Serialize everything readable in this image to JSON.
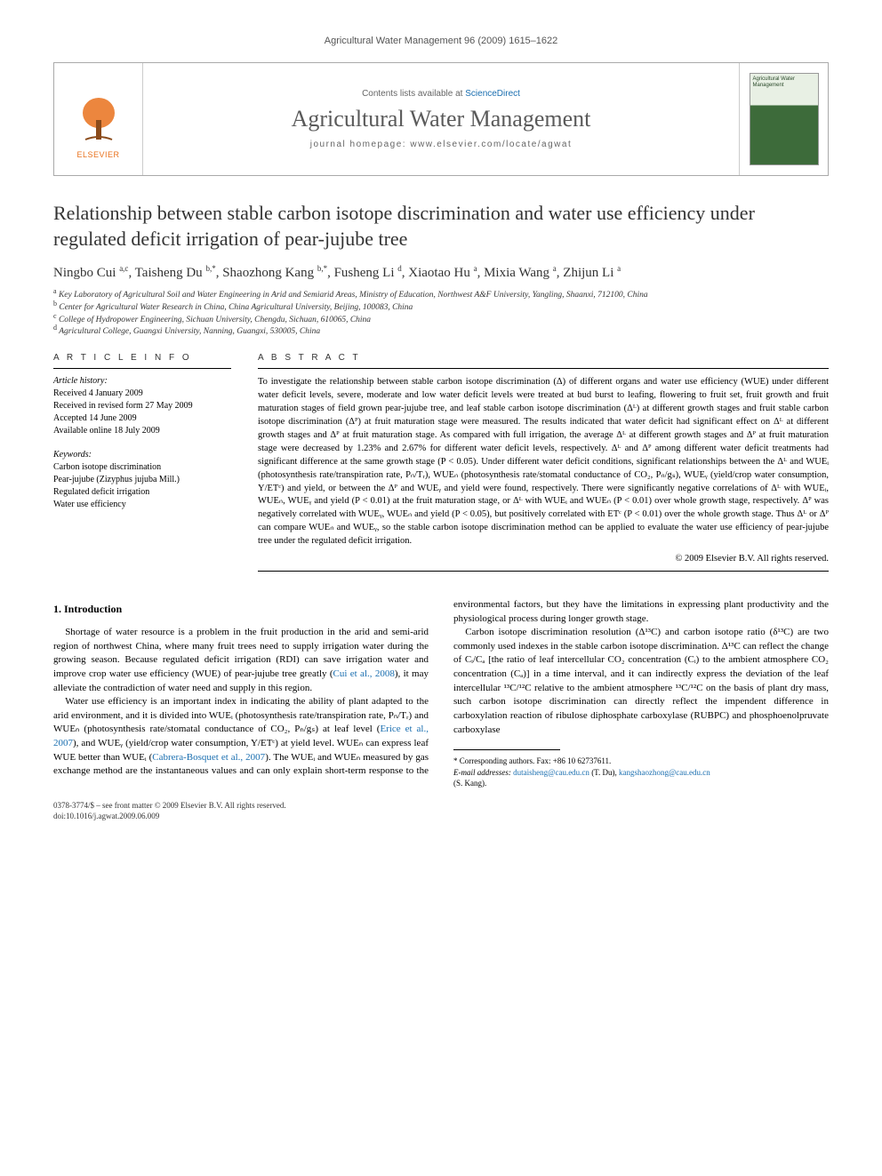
{
  "runningHead": "Agricultural Water Management 96 (2009) 1615–1622",
  "masthead": {
    "contentsPrefix": "Contents lists available at ",
    "contentsLink": "ScienceDirect",
    "journalName": "Agricultural Water Management",
    "homepageLine": "journal homepage: www.elsevier.com/locate/agwat",
    "publisher": "ELSEVIER",
    "coverLabel": "Agricultural Water Management"
  },
  "title": "Relationship between stable carbon isotope discrimination and water use efficiency under regulated deficit irrigation of pear-jujube tree",
  "authorsHtml": "Ningbo Cui <sup>a,c</sup>, Taisheng Du <sup>b,*</sup>, Shaozhong Kang <sup>b,*</sup>, Fusheng Li <sup>d</sup>, Xiaotao Hu <sup>a</sup>, Mixia Wang <sup>a</sup>, Zhijun Li <sup>a</sup>",
  "affiliations": [
    {
      "sup": "a",
      "text": "Key Laboratory of Agricultural Soil and Water Engineering in Arid and Semiarid Areas, Ministry of Education, Northwest A&F University, Yangling, Shaanxi, 712100, China"
    },
    {
      "sup": "b",
      "text": "Center for Agricultural Water Research in China, China Agricultural University, Beijing, 100083, China"
    },
    {
      "sup": "c",
      "text": "College of Hydropower Engineering, Sichuan University, Chengdu, Sichuan, 610065, China"
    },
    {
      "sup": "d",
      "text": "Agricultural College, Guangxi University, Nanning, Guangxi, 530005, China"
    }
  ],
  "articleInfoLabel": "A R T I C L E   I N F O",
  "abstractLabel": "A B S T R A C T",
  "historyLabel": "Article history:",
  "history": [
    "Received 4 January 2009",
    "Received in revised form 27 May 2009",
    "Accepted 14 June 2009",
    "Available online 18 July 2009"
  ],
  "keywordsLabel": "Keywords:",
  "keywords": [
    "Carbon isotope discrimination",
    "Pear-jujube (Zizyphus jujuba Mill.)",
    "Regulated deficit irrigation",
    "Water use efficiency"
  ],
  "abstract": "To investigate the relationship between stable carbon isotope discrimination (Δ) of different organs and water use efficiency (WUE) under different water deficit levels, severe, moderate and low water deficit levels were treated at bud burst to leafing, flowering to fruit set, fruit growth and fruit maturation stages of field grown pear-jujube tree, and leaf stable carbon isotope discrimination (Δᴸ) at different growth stages and fruit stable carbon isotope discrimination (Δᴾ) at fruit maturation stage were measured. The results indicated that water deficit had significant effect on Δᴸ at different growth stages and Δᴾ at fruit maturation stage. As compared with full irrigation, the average Δᴸ at different growth stages and Δᴾ at fruit maturation stage were decreased by 1.23% and 2.67% for different water deficit levels, respectively. Δᴸ and Δᴾ among different water deficit treatments had significant difference at the same growth stage (P < 0.05). Under different water deficit conditions, significant relationships between the Δᴸ and WUEᵢ (photosynthesis rate/transpiration rate, Pₙ/Tᵣ), WUEₙ (photosynthesis rate/stomatal conductance of CO₂, Pₙ/gₛ), WUEᵧ (yield/crop water consumption, Y/ETᶜ) and yield, or between the Δᴾ and WUEᵧ and yield were found, respectively. There were significantly negative correlations of Δᴸ with WUEᵢ, WUEₙ, WUEᵧ and yield (P < 0.01) at the fruit maturation stage, or Δᴸ with WUEᵢ and WUEₙ (P < 0.01) over whole growth stage, respectively. Δᴾ was negatively correlated with WUEᵧ, WUEₙ and yield (P < 0.05), but positively correlated with ETᶜ (P < 0.01) over the whole growth stage. Thus Δᴸ or Δᴾ can compare WUEₙ and WUEᵧ, so the stable carbon isotope discrimination method can be applied to evaluate the water use efficiency of pear-jujube tree under the regulated deficit irrigation.",
  "copyright": "© 2009 Elsevier B.V. All rights reserved.",
  "intro": {
    "heading": "1. Introduction",
    "p1_pre": "Shortage of water resource is a problem in the fruit production in the arid and semi-arid region of northwest China, where many fruit trees need to supply irrigation water during the growing season. Because regulated deficit irrigation (RDI) can save irrigation water and improve crop water use efficiency (WUE) of pear-jujube tree greatly (",
    "p1_ref": "Cui et al., 2008",
    "p1_post": "), it may alleviate the contradiction of water need and supply in this region.",
    "p2_pre": "Water use efficiency is an important index in indicating the ability of plant adapted to the arid environment, and it is divided into WUEᵢ (photosynthesis rate/transpiration rate, Pₙ/Tᵣ) and WUEₙ (photosynthesis rate/stomatal conductance of CO₂, Pₙ/gₛ) at leaf level (",
    "p2_ref1": "Erice et al., 2007",
    "p2_mid": "), and WUEᵧ (yield/crop water consumption, Y/ETᶜ) at yield level. WUEₙ can express leaf WUE better than WUEᵢ (",
    "p2_ref2": "Cabrera-Bosquet et al., 2007",
    "p2_post": "). The WUEᵢ and WUEₙ measured by gas exchange method are the instantaneous values and can only explain short-term response to the environmental factors, but they have the limitations in expressing plant productivity and the physiological process during longer growth stage.",
    "p3": "Carbon isotope discrimination resolution (Δ¹³C) and carbon isotope ratio (δ¹³C) are two commonly used indexes in the stable carbon isotope discrimination. Δ¹³C can reflect the change of Cᵢ/Cₐ [the ratio of leaf intercellular CO₂ concentration (Cᵢ) to the ambient atmosphere CO₂ concentration (Cₐ)] in a time interval, and it can indirectly express the deviation of the leaf intercellular ¹³C/¹²C relative to the ambient atmosphere ¹³C/¹²C on the basis of plant dry mass, such carbon isotope discrimination can directly reflect the impendent difference in carboxylation reaction of ribulose diphosphate carboxylase (RUBPC) and phosphoenolpruvate carboxylase"
  },
  "footnotes": {
    "corr": "* Corresponding authors. Fax: +86 10 62737611.",
    "emailLabel": "E-mail addresses: ",
    "email1": "dutaisheng@cau.edu.cn",
    "email1who": " (T. Du), ",
    "email2": "kangshaozhong@cau.edu.cn",
    "email2who": " (S. Kang)."
  },
  "doi": {
    "line1": "0378-3774/$ – see front matter © 2009 Elsevier B.V. All rights reserved.",
    "line2": "doi:10.1016/j.agwat.2009.06.009"
  },
  "colors": {
    "linkColor": "#1b6fb0",
    "elsevierOrange": "#e9711c",
    "textColor": "#000000",
    "mutedText": "#555555"
  },
  "layout": {
    "pageWidth": 992,
    "pageHeight": 1323,
    "columnGap": 28,
    "bodyFontSize": 11
  }
}
